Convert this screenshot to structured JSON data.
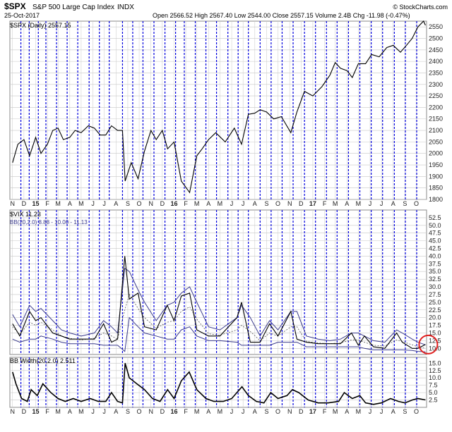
{
  "header": {
    "symbol": "$SPX",
    "name": "S&P 500 Large Cap Index",
    "exchange": "INDX",
    "date": "25-Oct-2017",
    "quote": "Open 2566.52  High 2567.40  Low 2544.00  Close 2557.15  Volume 2.4B  Chg -11.98 (-0.47%)",
    "brand": "© StockCharts.com"
  },
  "colors": {
    "price_line": "#000000",
    "vix_line": "#000000",
    "bb_bands": "#3a3a8c",
    "bb_mid": "#555555",
    "vlines": "#0000dd",
    "grid": "#c8c8c8",
    "highlight_circle": "#e02020",
    "axis_text": "#222222"
  },
  "chart_data": [
    {
      "type": "line",
      "panel": "price",
      "legend": "$SPX (Daily) 2557.15",
      "ylim": [
        1800,
        2575
      ],
      "yticks": [
        1800,
        1850,
        1900,
        1950,
        2000,
        2050,
        2100,
        2150,
        2200,
        2250,
        2300,
        2350,
        2400,
        2450,
        2500,
        2550
      ],
      "x": [
        "2014-11-01",
        "2014-11-15",
        "2014-12-01",
        "2014-12-16",
        "2015-01-01",
        "2015-01-15",
        "2015-02-01",
        "2015-02-15",
        "2015-03-01",
        "2015-03-15",
        "2015-04-01",
        "2015-04-15",
        "2015-05-01",
        "2015-05-20",
        "2015-06-05",
        "2015-06-20",
        "2015-07-05",
        "2015-07-20",
        "2015-08-05",
        "2015-08-18",
        "2015-08-25",
        "2015-09-10",
        "2015-09-28",
        "2015-10-15",
        "2015-11-01",
        "2015-11-15",
        "2015-12-01",
        "2015-12-15",
        "2016-01-01",
        "2016-01-20",
        "2016-02-11",
        "2016-03-01",
        "2016-03-15",
        "2016-04-01",
        "2016-04-20",
        "2016-05-15",
        "2016-06-08",
        "2016-06-27",
        "2016-07-15",
        "2016-08-01",
        "2016-08-15",
        "2016-09-01",
        "2016-09-20",
        "2016-10-10",
        "2016-11-04",
        "2016-11-20",
        "2016-12-10",
        "2017-01-01",
        "2017-01-25",
        "2017-02-15",
        "2017-03-01",
        "2017-03-15",
        "2017-04-01",
        "2017-04-15",
        "2017-05-01",
        "2017-05-20",
        "2017-06-05",
        "2017-06-25",
        "2017-07-15",
        "2017-08-01",
        "2017-08-20",
        "2017-09-05",
        "2017-09-20",
        "2017-10-05",
        "2017-10-20",
        "2017-10-25"
      ],
      "y": [
        1960,
        2040,
        2060,
        1990,
        2070,
        2000,
        2040,
        2100,
        2110,
        2060,
        2070,
        2100,
        2090,
        2120,
        2110,
        2080,
        2080,
        2120,
        2100,
        2100,
        1880,
        1960,
        1890,
        2010,
        2100,
        2060,
        2100,
        2020,
        2050,
        1880,
        1830,
        1990,
        2020,
        2060,
        2090,
        2050,
        2110,
        2040,
        2170,
        2175,
        2190,
        2180,
        2150,
        2160,
        2090,
        2180,
        2270,
        2250,
        2290,
        2340,
        2395,
        2370,
        2360,
        2330,
        2390,
        2390,
        2430,
        2420,
        2460,
        2470,
        2440,
        2470,
        2500,
        2550,
        2575,
        2557
      ]
    },
    {
      "type": "line",
      "panel": "vix",
      "legend": "$VIX 11.23",
      "legend2": "BB(20,2.0) 8.88 - 10.00 - 11.13",
      "ylim": [
        8,
        55
      ],
      "yticks": [
        10.0,
        12.5,
        15.0,
        17.5,
        20.0,
        22.5,
        25.0,
        27.5,
        30.0,
        32.5,
        35.0,
        37.5,
        40.0,
        42.5,
        45.0,
        47.5,
        50.0,
        52.5
      ],
      "x": [
        "2014-11-01",
        "2014-11-20",
        "2014-12-16",
        "2015-01-01",
        "2015-01-15",
        "2015-02-15",
        "2015-03-10",
        "2015-04-01",
        "2015-05-01",
        "2015-06-05",
        "2015-06-29",
        "2015-07-20",
        "2015-08-05",
        "2015-08-24",
        "2015-09-05",
        "2015-09-28",
        "2015-10-15",
        "2015-11-15",
        "2015-12-14",
        "2016-01-01",
        "2016-01-20",
        "2016-02-11",
        "2016-03-01",
        "2016-04-01",
        "2016-05-01",
        "2016-06-15",
        "2016-06-27",
        "2016-07-20",
        "2016-08-15",
        "2016-09-09",
        "2016-10-01",
        "2016-11-04",
        "2016-11-20",
        "2016-12-15",
        "2017-01-15",
        "2017-02-15",
        "2017-03-15",
        "2017-04-13",
        "2017-05-01",
        "2017-05-17",
        "2017-06-10",
        "2017-07-10",
        "2017-08-10",
        "2017-08-25",
        "2017-09-20",
        "2017-10-05",
        "2017-10-25"
      ],
      "y": [
        18,
        14,
        22,
        19,
        20,
        15,
        14,
        13,
        13,
        13,
        18,
        12,
        13,
        40,
        26,
        28,
        17,
        16,
        24,
        19,
        27,
        28,
        16,
        14,
        14,
        20,
        25,
        12,
        12,
        18,
        14,
        22,
        13,
        12,
        11.5,
        11.5,
        11.5,
        15,
        11,
        14,
        10.5,
        10,
        15,
        12,
        10,
        10,
        11.23
      ],
      "bb_upper": [
        21,
        17,
        24,
        22,
        23,
        19,
        16,
        15,
        14,
        15,
        19,
        17,
        15,
        36,
        35,
        29,
        25,
        19,
        24,
        25,
        28,
        30,
        25,
        17,
        16,
        20,
        24,
        20,
        14,
        19,
        16,
        22,
        22,
        14,
        13,
        12.5,
        13,
        15,
        15,
        14,
        12.5,
        12,
        16,
        15,
        13,
        12,
        11.13
      ],
      "bb_lower": [
        13,
        12,
        13,
        13,
        14,
        13,
        12,
        11.5,
        11.5,
        11.5,
        11,
        11,
        11,
        9,
        20,
        17,
        15,
        14,
        13,
        13,
        16,
        17,
        14,
        12.5,
        12.5,
        12,
        11,
        11,
        11,
        11,
        12,
        12,
        12,
        10.5,
        10.5,
        10.5,
        10.5,
        10.5,
        10.5,
        10,
        9.5,
        9.5,
        9.5,
        9.5,
        9.3,
        9,
        8.88
      ]
    },
    {
      "type": "line",
      "panel": "bbwidth",
      "legend": "BB Width(20,2.0) 2.511",
      "ylim": [
        0,
        17
      ],
      "yticks": [
        2.5,
        5.0,
        7.5,
        10.0,
        12.5,
        15.0
      ],
      "x": [
        "2014-11-01",
        "2014-11-10",
        "2014-11-25",
        "2014-12-10",
        "2014-12-20",
        "2015-01-05",
        "2015-01-20",
        "2015-02-10",
        "2015-03-01",
        "2015-03-20",
        "2015-04-10",
        "2015-05-01",
        "2015-05-25",
        "2015-06-15",
        "2015-07-05",
        "2015-07-20",
        "2015-08-05",
        "2015-08-18",
        "2015-08-25",
        "2015-09-05",
        "2015-09-25",
        "2015-10-15",
        "2015-11-05",
        "2015-11-25",
        "2015-12-15",
        "2016-01-01",
        "2016-01-20",
        "2016-02-10",
        "2016-03-01",
        "2016-03-25",
        "2016-04-15",
        "2016-05-10",
        "2016-06-01",
        "2016-06-28",
        "2016-07-15",
        "2016-08-05",
        "2016-08-25",
        "2016-09-12",
        "2016-10-01",
        "2016-10-25",
        "2016-11-08",
        "2016-11-25",
        "2016-12-20",
        "2017-01-15",
        "2017-02-10",
        "2017-03-10",
        "2017-03-25",
        "2017-04-15",
        "2017-05-05",
        "2017-05-20",
        "2017-06-10",
        "2017-07-01",
        "2017-07-25",
        "2017-08-15",
        "2017-09-01",
        "2017-09-20",
        "2017-10-05",
        "2017-10-25"
      ],
      "y": [
        12,
        8,
        3,
        2,
        6,
        4,
        8,
        5,
        3,
        2,
        3,
        2,
        3,
        2,
        2,
        5,
        2,
        1.5,
        15,
        10,
        8,
        6,
        3,
        2,
        6,
        3,
        9,
        12,
        6,
        3,
        2,
        2,
        3,
        7,
        4,
        2,
        1.5,
        5,
        3,
        4,
        6,
        5,
        2.5,
        1.5,
        1.5,
        2,
        5,
        3,
        4,
        1.5,
        1,
        1.5,
        3,
        2,
        1.5,
        2.5,
        3,
        2.511
      ]
    }
  ],
  "x_tick_labels": [
    {
      "t": "2014-11-01",
      "label": "N",
      "bold": false
    },
    {
      "t": "2014-12-01",
      "label": "D",
      "bold": false
    },
    {
      "t": "2015-01-01",
      "label": "15",
      "bold": true
    },
    {
      "t": "2015-02-01",
      "label": "F",
      "bold": false
    },
    {
      "t": "2015-03-01",
      "label": "M",
      "bold": false
    },
    {
      "t": "2015-04-01",
      "label": "A",
      "bold": false
    },
    {
      "t": "2015-05-01",
      "label": "M",
      "bold": false
    },
    {
      "t": "2015-06-01",
      "label": "J",
      "bold": false
    },
    {
      "t": "2015-07-01",
      "label": "J",
      "bold": false
    },
    {
      "t": "2015-08-01",
      "label": "A",
      "bold": false
    },
    {
      "t": "2015-09-01",
      "label": "S",
      "bold": false
    },
    {
      "t": "2015-10-01",
      "label": "O",
      "bold": false
    },
    {
      "t": "2015-11-01",
      "label": "N",
      "bold": false
    },
    {
      "t": "2015-12-01",
      "label": "D",
      "bold": false
    },
    {
      "t": "2016-01-01",
      "label": "16",
      "bold": true
    },
    {
      "t": "2016-02-01",
      "label": "F",
      "bold": false
    },
    {
      "t": "2016-03-01",
      "label": "M",
      "bold": false
    },
    {
      "t": "2016-04-01",
      "label": "A",
      "bold": false
    },
    {
      "t": "2016-05-01",
      "label": "M",
      "bold": false
    },
    {
      "t": "2016-06-01",
      "label": "J",
      "bold": false
    },
    {
      "t": "2016-07-01",
      "label": "J",
      "bold": false
    },
    {
      "t": "2016-08-01",
      "label": "A",
      "bold": false
    },
    {
      "t": "2016-09-01",
      "label": "S",
      "bold": false
    },
    {
      "t": "2016-10-01",
      "label": "O",
      "bold": false
    },
    {
      "t": "2016-11-01",
      "label": "N",
      "bold": false
    },
    {
      "t": "2016-12-01",
      "label": "D",
      "bold": false
    },
    {
      "t": "2017-01-01",
      "label": "17",
      "bold": true
    },
    {
      "t": "2017-02-01",
      "label": "F",
      "bold": false
    },
    {
      "t": "2017-03-01",
      "label": "M",
      "bold": false
    },
    {
      "t": "2017-04-01",
      "label": "A",
      "bold": false
    },
    {
      "t": "2017-05-01",
      "label": "M",
      "bold": false
    },
    {
      "t": "2017-06-01",
      "label": "J",
      "bold": false
    },
    {
      "t": "2017-07-01",
      "label": "J",
      "bold": false
    },
    {
      "t": "2017-08-01",
      "label": "A",
      "bold": false
    },
    {
      "t": "2017-09-01",
      "label": "S",
      "bold": false
    },
    {
      "t": "2017-10-01",
      "label": "O",
      "bold": false
    }
  ],
  "vertical_markers": [
    "2014-11-23",
    "2014-12-15",
    "2015-01-08",
    "2015-01-28",
    "2015-02-25",
    "2015-03-25",
    "2015-04-22",
    "2015-05-22",
    "2015-06-18",
    "2015-07-14",
    "2015-08-18",
    "2015-09-14",
    "2015-10-11",
    "2015-11-09",
    "2015-12-08",
    "2016-01-05",
    "2016-01-28",
    "2016-02-26",
    "2016-03-25",
    "2016-04-22",
    "2016-05-22",
    "2016-06-18",
    "2016-07-15",
    "2016-08-15",
    "2016-09-13",
    "2016-10-12",
    "2016-11-10",
    "2016-12-10",
    "2017-01-08",
    "2017-02-06",
    "2017-03-06",
    "2017-04-05",
    "2017-05-05",
    "2017-06-04",
    "2017-07-04",
    "2017-08-04",
    "2017-09-02",
    "2017-10-02"
  ]
}
